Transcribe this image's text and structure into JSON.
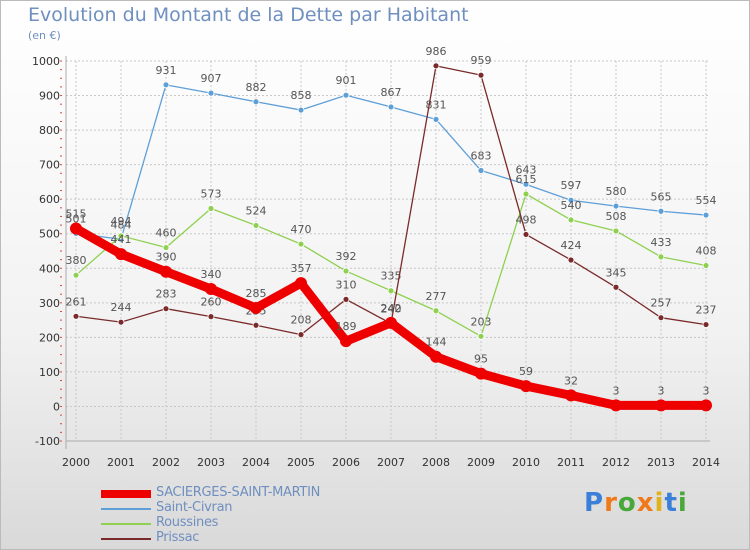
{
  "chart_data": {
    "type": "line",
    "title": "Evolution du Montant de la Dette par Habitant",
    "subtitle": "(en €)",
    "x": [
      2000,
      2001,
      2002,
      2003,
      2004,
      2005,
      2006,
      2007,
      2008,
      2009,
      2010,
      2011,
      2012,
      2013,
      2014
    ],
    "ylim": [
      -100,
      1000
    ],
    "yticks": [
      -100,
      0,
      100,
      200,
      300,
      400,
      500,
      600,
      700,
      800,
      900,
      1000
    ],
    "series": [
      {
        "name": "SACIERGES-SAINT-MARTIN",
        "color": "#ee0000",
        "values": [
          515,
          441,
          390,
          340,
          285,
          357,
          189,
          242,
          144,
          95,
          59,
          32,
          3,
          3,
          3
        ]
      },
      {
        "name": "Saint-Civran",
        "color": "#5f9fd7",
        "values": [
          501,
          484,
          931,
          907,
          882,
          858,
          901,
          867,
          831,
          683,
          643,
          597,
          580,
          565,
          554
        ]
      },
      {
        "name": "Roussines",
        "color": "#8fd050",
        "values": [
          380,
          494,
          460,
          573,
          524,
          470,
          392,
          335,
          277,
          203,
          615,
          540,
          508,
          433,
          408
        ]
      },
      {
        "name": "Prissac",
        "color": "#7a2a2a",
        "values": [
          261,
          244,
          283,
          260,
          235,
          208,
          310,
          240,
          986,
          959,
          498,
          424,
          345,
          257,
          237
        ]
      }
    ]
  },
  "logo_text": "Proxiti"
}
